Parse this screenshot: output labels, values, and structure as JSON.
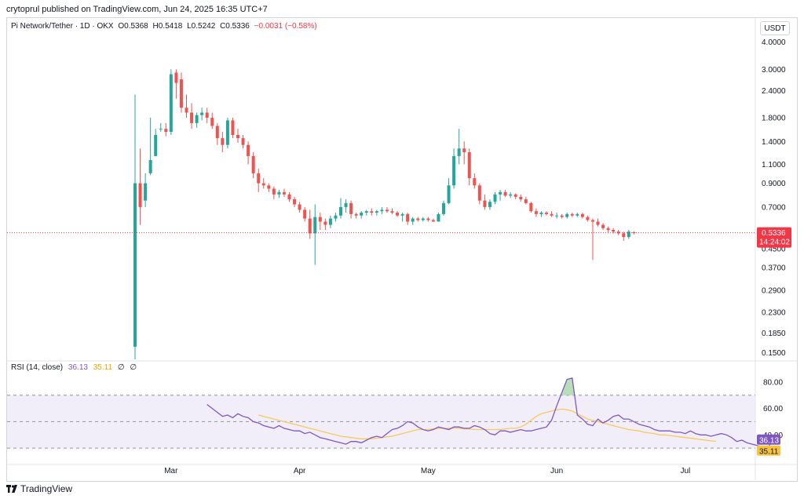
{
  "attribution": "crytoprul published on TradingView.com, Jun 24, 2025 16:35 UTC+7",
  "legend": {
    "symbol": "Pi Network/Tether · 1D · OKX",
    "open": "O0.5368",
    "high": "H0.5418",
    "low": "L0.5242",
    "close": "C0.5336",
    "change": "−0.0031 (−0.58%)"
  },
  "currency_button": "USDT",
  "footer": {
    "brand": "TradingView"
  },
  "colors": {
    "up": "#26a69a",
    "down": "#ef5350",
    "rsi": "#7e57c2",
    "rsi_ma": "#f7c95c",
    "price_line": "#f23645",
    "overbought_fill": "#a5d6a7"
  },
  "chart_data": [
    {
      "type": "candlestick",
      "title": "Pi Network/Tether · 1D · OKX",
      "y_scale": "log",
      "y_ticks": [
        "4.0000",
        "3.0000",
        "2.4000",
        "1.8000",
        "1.4000",
        "1.1000",
        "0.9000",
        "0.7000",
        "0.4500",
        "0.3700",
        "0.2900",
        "0.2300",
        "0.1850",
        "0.1500"
      ],
      "x_ticks": [
        "Mar",
        "Apr",
        "May",
        "Jun",
        "Jul"
      ],
      "ylim": [
        0.14,
        4.3
      ],
      "x_range_days": [
        0,
        120
      ],
      "last_price_label": "0.5336",
      "countdown_label": "14:24:02",
      "ohlc": [
        [
          0.16,
          2.3,
          0.015,
          0.9
        ],
        [
          0.9,
          1.3,
          0.58,
          0.7
        ],
        [
          0.75,
          1.0,
          0.7,
          0.9
        ],
        [
          1.0,
          1.8,
          0.98,
          1.15
        ],
        [
          1.2,
          1.6,
          1.2,
          1.5
        ],
        [
          1.6,
          1.7,
          1.55,
          1.6
        ],
        [
          1.6,
          1.7,
          1.48,
          1.55
        ],
        [
          1.55,
          3.0,
          1.5,
          2.85
        ],
        [
          2.9,
          3.0,
          2.2,
          2.6
        ],
        [
          2.7,
          2.9,
          1.9,
          2.0
        ],
        [
          2.0,
          2.3,
          1.8,
          1.9
        ],
        [
          1.9,
          2.1,
          1.6,
          1.7
        ],
        [
          1.7,
          1.9,
          1.62,
          1.85
        ],
        [
          1.85,
          2.0,
          1.75,
          1.9
        ],
        [
          1.9,
          2.0,
          1.7,
          1.8
        ],
        [
          1.8,
          1.9,
          1.6,
          1.65
        ],
        [
          1.65,
          1.7,
          1.35,
          1.45
        ],
        [
          1.45,
          1.55,
          1.25,
          1.35
        ],
        [
          1.35,
          1.8,
          1.3,
          1.75
        ],
        [
          1.75,
          1.8,
          1.45,
          1.5
        ],
        [
          1.5,
          1.6,
          1.38,
          1.45
        ],
        [
          1.45,
          1.5,
          1.3,
          1.35
        ],
        [
          1.35,
          1.4,
          1.1,
          1.2
        ],
        [
          1.2,
          1.25,
          0.95,
          1.0
        ],
        [
          1.0,
          1.05,
          0.82,
          0.9
        ],
        [
          0.9,
          0.95,
          0.85,
          0.88
        ],
        [
          0.88,
          0.9,
          0.82,
          0.85
        ],
        [
          0.85,
          0.87,
          0.76,
          0.8
        ],
        [
          0.8,
          0.84,
          0.77,
          0.82
        ],
        [
          0.82,
          0.85,
          0.78,
          0.8
        ],
        [
          0.8,
          0.82,
          0.74,
          0.76
        ],
        [
          0.76,
          0.78,
          0.7,
          0.72
        ],
        [
          0.72,
          0.74,
          0.66,
          0.68
        ],
        [
          0.68,
          0.7,
          0.6,
          0.62
        ],
        [
          0.62,
          0.68,
          0.5,
          0.53
        ],
        [
          0.53,
          0.72,
          0.38,
          0.63
        ],
        [
          0.63,
          0.66,
          0.55,
          0.6
        ],
        [
          0.6,
          0.62,
          0.55,
          0.58
        ],
        [
          0.58,
          0.64,
          0.56,
          0.62
        ],
        [
          0.62,
          0.66,
          0.6,
          0.64
        ],
        [
          0.64,
          0.77,
          0.62,
          0.7
        ],
        [
          0.7,
          0.76,
          0.66,
          0.73
        ],
        [
          0.73,
          0.75,
          0.62,
          0.65
        ],
        [
          0.65,
          0.66,
          0.62,
          0.64
        ],
        [
          0.64,
          0.67,
          0.62,
          0.66
        ],
        [
          0.66,
          0.68,
          0.64,
          0.67
        ],
        [
          0.67,
          0.69,
          0.64,
          0.66
        ],
        [
          0.66,
          0.68,
          0.64,
          0.67
        ],
        [
          0.67,
          0.7,
          0.65,
          0.68
        ],
        [
          0.68,
          0.7,
          0.66,
          0.67
        ],
        [
          0.67,
          0.69,
          0.65,
          0.66
        ],
        [
          0.66,
          0.67,
          0.63,
          0.64
        ],
        [
          0.64,
          0.66,
          0.6,
          0.65
        ],
        [
          0.65,
          0.66,
          0.58,
          0.6
        ],
        [
          0.6,
          0.63,
          0.58,
          0.62
        ],
        [
          0.62,
          0.63,
          0.6,
          0.61
        ],
        [
          0.61,
          0.63,
          0.6,
          0.62
        ],
        [
          0.62,
          0.63,
          0.6,
          0.61
        ],
        [
          0.61,
          0.62,
          0.6,
          0.6
        ],
        [
          0.6,
          0.66,
          0.6,
          0.65
        ],
        [
          0.65,
          0.75,
          0.64,
          0.73
        ],
        [
          0.73,
          0.95,
          0.72,
          0.88
        ],
        [
          0.88,
          1.3,
          0.85,
          1.2
        ],
        [
          1.2,
          1.6,
          1.1,
          1.3
        ],
        [
          1.3,
          1.4,
          1.1,
          1.25
        ],
        [
          1.25,
          1.3,
          0.88,
          0.95
        ],
        [
          0.95,
          1.0,
          0.85,
          0.88
        ],
        [
          0.88,
          0.9,
          0.72,
          0.75
        ],
        [
          0.75,
          0.8,
          0.68,
          0.7
        ],
        [
          0.7,
          0.76,
          0.68,
          0.74
        ],
        [
          0.74,
          0.82,
          0.72,
          0.8
        ],
        [
          0.8,
          0.84,
          0.75,
          0.82
        ],
        [
          0.82,
          0.84,
          0.78,
          0.79
        ],
        [
          0.79,
          0.82,
          0.77,
          0.8
        ],
        [
          0.8,
          0.81,
          0.76,
          0.78
        ],
        [
          0.78,
          0.8,
          0.74,
          0.76
        ],
        [
          0.76,
          0.78,
          0.72,
          0.73
        ],
        [
          0.73,
          0.74,
          0.66,
          0.67
        ],
        [
          0.67,
          0.69,
          0.63,
          0.65
        ],
        [
          0.65,
          0.67,
          0.63,
          0.66
        ],
        [
          0.66,
          0.67,
          0.64,
          0.65
        ],
        [
          0.65,
          0.67,
          0.63,
          0.64
        ],
        [
          0.64,
          0.66,
          0.62,
          0.64
        ],
        [
          0.64,
          0.65,
          0.62,
          0.63
        ],
        [
          0.63,
          0.66,
          0.62,
          0.65
        ],
        [
          0.65,
          0.66,
          0.63,
          0.64
        ],
        [
          0.64,
          0.66,
          0.63,
          0.65
        ],
        [
          0.65,
          0.66,
          0.62,
          0.63
        ],
        [
          0.63,
          0.64,
          0.6,
          0.61
        ],
        [
          0.61,
          0.62,
          0.4,
          0.6
        ],
        [
          0.6,
          0.62,
          0.57,
          0.58
        ],
        [
          0.58,
          0.59,
          0.55,
          0.56
        ],
        [
          0.56,
          0.57,
          0.53,
          0.55
        ],
        [
          0.55,
          0.56,
          0.53,
          0.54
        ],
        [
          0.54,
          0.55,
          0.52,
          0.53
        ],
        [
          0.53,
          0.54,
          0.49,
          0.51
        ],
        [
          0.51,
          0.55,
          0.5,
          0.54
        ],
        [
          0.5368,
          0.5418,
          0.5242,
          0.5336
        ]
      ]
    },
    {
      "type": "line",
      "title": "RSI (14, close)",
      "legend_values": [
        "36.13",
        "35.11"
      ],
      "legend_extra": [
        "∅",
        "∅"
      ],
      "y_ticks": [
        "80.00",
        "60.00",
        "40.00"
      ],
      "bands": [
        70,
        50,
        30
      ],
      "ylim": [
        20,
        90
      ],
      "last_rsi_label": "36.13",
      "last_ma_label": "35.11",
      "series": [
        {
          "role": "rsi",
          "start_day": 14,
          "values": [
            63,
            60,
            57,
            54,
            55,
            53,
            56,
            54,
            53,
            50,
            49,
            47,
            46,
            45,
            47,
            45,
            44,
            43,
            43,
            41,
            42,
            40,
            38,
            37,
            36,
            35,
            34,
            33,
            35,
            35,
            34,
            36,
            38,
            39,
            38,
            41,
            44,
            45,
            47,
            50,
            49,
            46,
            44,
            43,
            44,
            46,
            45,
            44,
            46,
            46,
            45,
            45,
            47,
            46,
            44,
            41,
            40,
            43,
            43,
            42,
            43,
            44,
            43,
            43,
            44,
            45,
            46,
            51,
            62,
            72,
            82,
            83,
            55,
            52,
            48,
            47,
            52,
            49,
            51,
            54,
            55,
            52,
            52,
            50,
            48,
            47,
            46,
            44,
            43,
            43,
            43,
            42,
            42,
            41,
            43,
            41,
            40,
            40,
            39,
            40,
            41,
            40,
            38,
            35,
            36,
            34,
            33,
            32,
            31,
            30,
            36,
            36
          ]
        },
        {
          "role": "ma",
          "start_day": 24,
          "values": [
            55,
            54,
            53,
            52,
            51,
            50,
            49,
            48,
            47,
            46,
            45,
            44,
            43,
            42,
            41,
            40,
            39,
            38.5,
            38,
            37.5,
            37,
            37,
            37,
            37.5,
            38,
            38.5,
            39,
            40,
            41,
            42,
            43,
            44,
            44,
            44,
            44.5,
            45,
            45,
            45,
            45,
            45,
            44.5,
            44.5,
            44,
            44,
            44,
            44,
            44,
            44,
            44.5,
            45,
            45,
            46,
            48,
            51,
            54,
            56,
            57,
            58,
            59,
            59.5,
            59,
            58,
            56,
            54,
            52,
            51,
            50,
            49,
            48,
            47,
            46,
            45,
            44,
            43.5,
            43,
            42,
            41.5,
            41,
            40,
            40,
            39.5,
            39,
            38.5,
            38,
            37.5,
            37,
            36.5,
            36,
            35.5,
            35.1
          ]
        }
      ]
    }
  ]
}
